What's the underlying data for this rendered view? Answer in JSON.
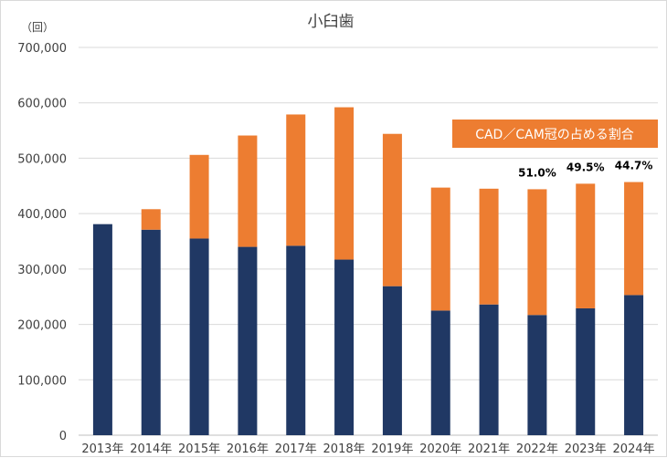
{
  "chart_data": {
    "type": "bar",
    "stacked": true,
    "title": "小臼歯",
    "y_unit": "（回）",
    "categories": [
      "2013年",
      "2014年",
      "2015年",
      "2016年",
      "2017年",
      "2018年",
      "2019年",
      "2020年",
      "2021年",
      "2022年",
      "2023年",
      "2024年"
    ],
    "series": [
      {
        "color": "#203864",
        "values": [
          381000,
          371000,
          355000,
          340000,
          342000,
          317000,
          269000,
          225000,
          236000,
          217000,
          229000,
          253000
        ]
      },
      {
        "color": "#ED7D31",
        "values": [
          0,
          37000,
          151000,
          201000,
          237000,
          275000,
          275000,
          222000,
          209000,
          227000,
          225000,
          204000
        ]
      }
    ],
    "ylim": [
      0,
      700000
    ],
    "yticks": [
      "0",
      "100,000",
      "200,000",
      "300,000",
      "400,000",
      "500,000",
      "600,000",
      "700,000"
    ],
    "ytick_values": [
      0,
      100000,
      200000,
      300000,
      400000,
      500000,
      600000,
      700000
    ],
    "grid": true,
    "annotation_box": {
      "text": "CAD／CAM冠の占める割合",
      "color": "#ED7D31"
    },
    "data_labels": [
      {
        "category": "2022年",
        "text": "51.0%"
      },
      {
        "category": "2023年",
        "text": "49.5%"
      },
      {
        "category": "2024年",
        "text": "44.7%"
      }
    ]
  }
}
